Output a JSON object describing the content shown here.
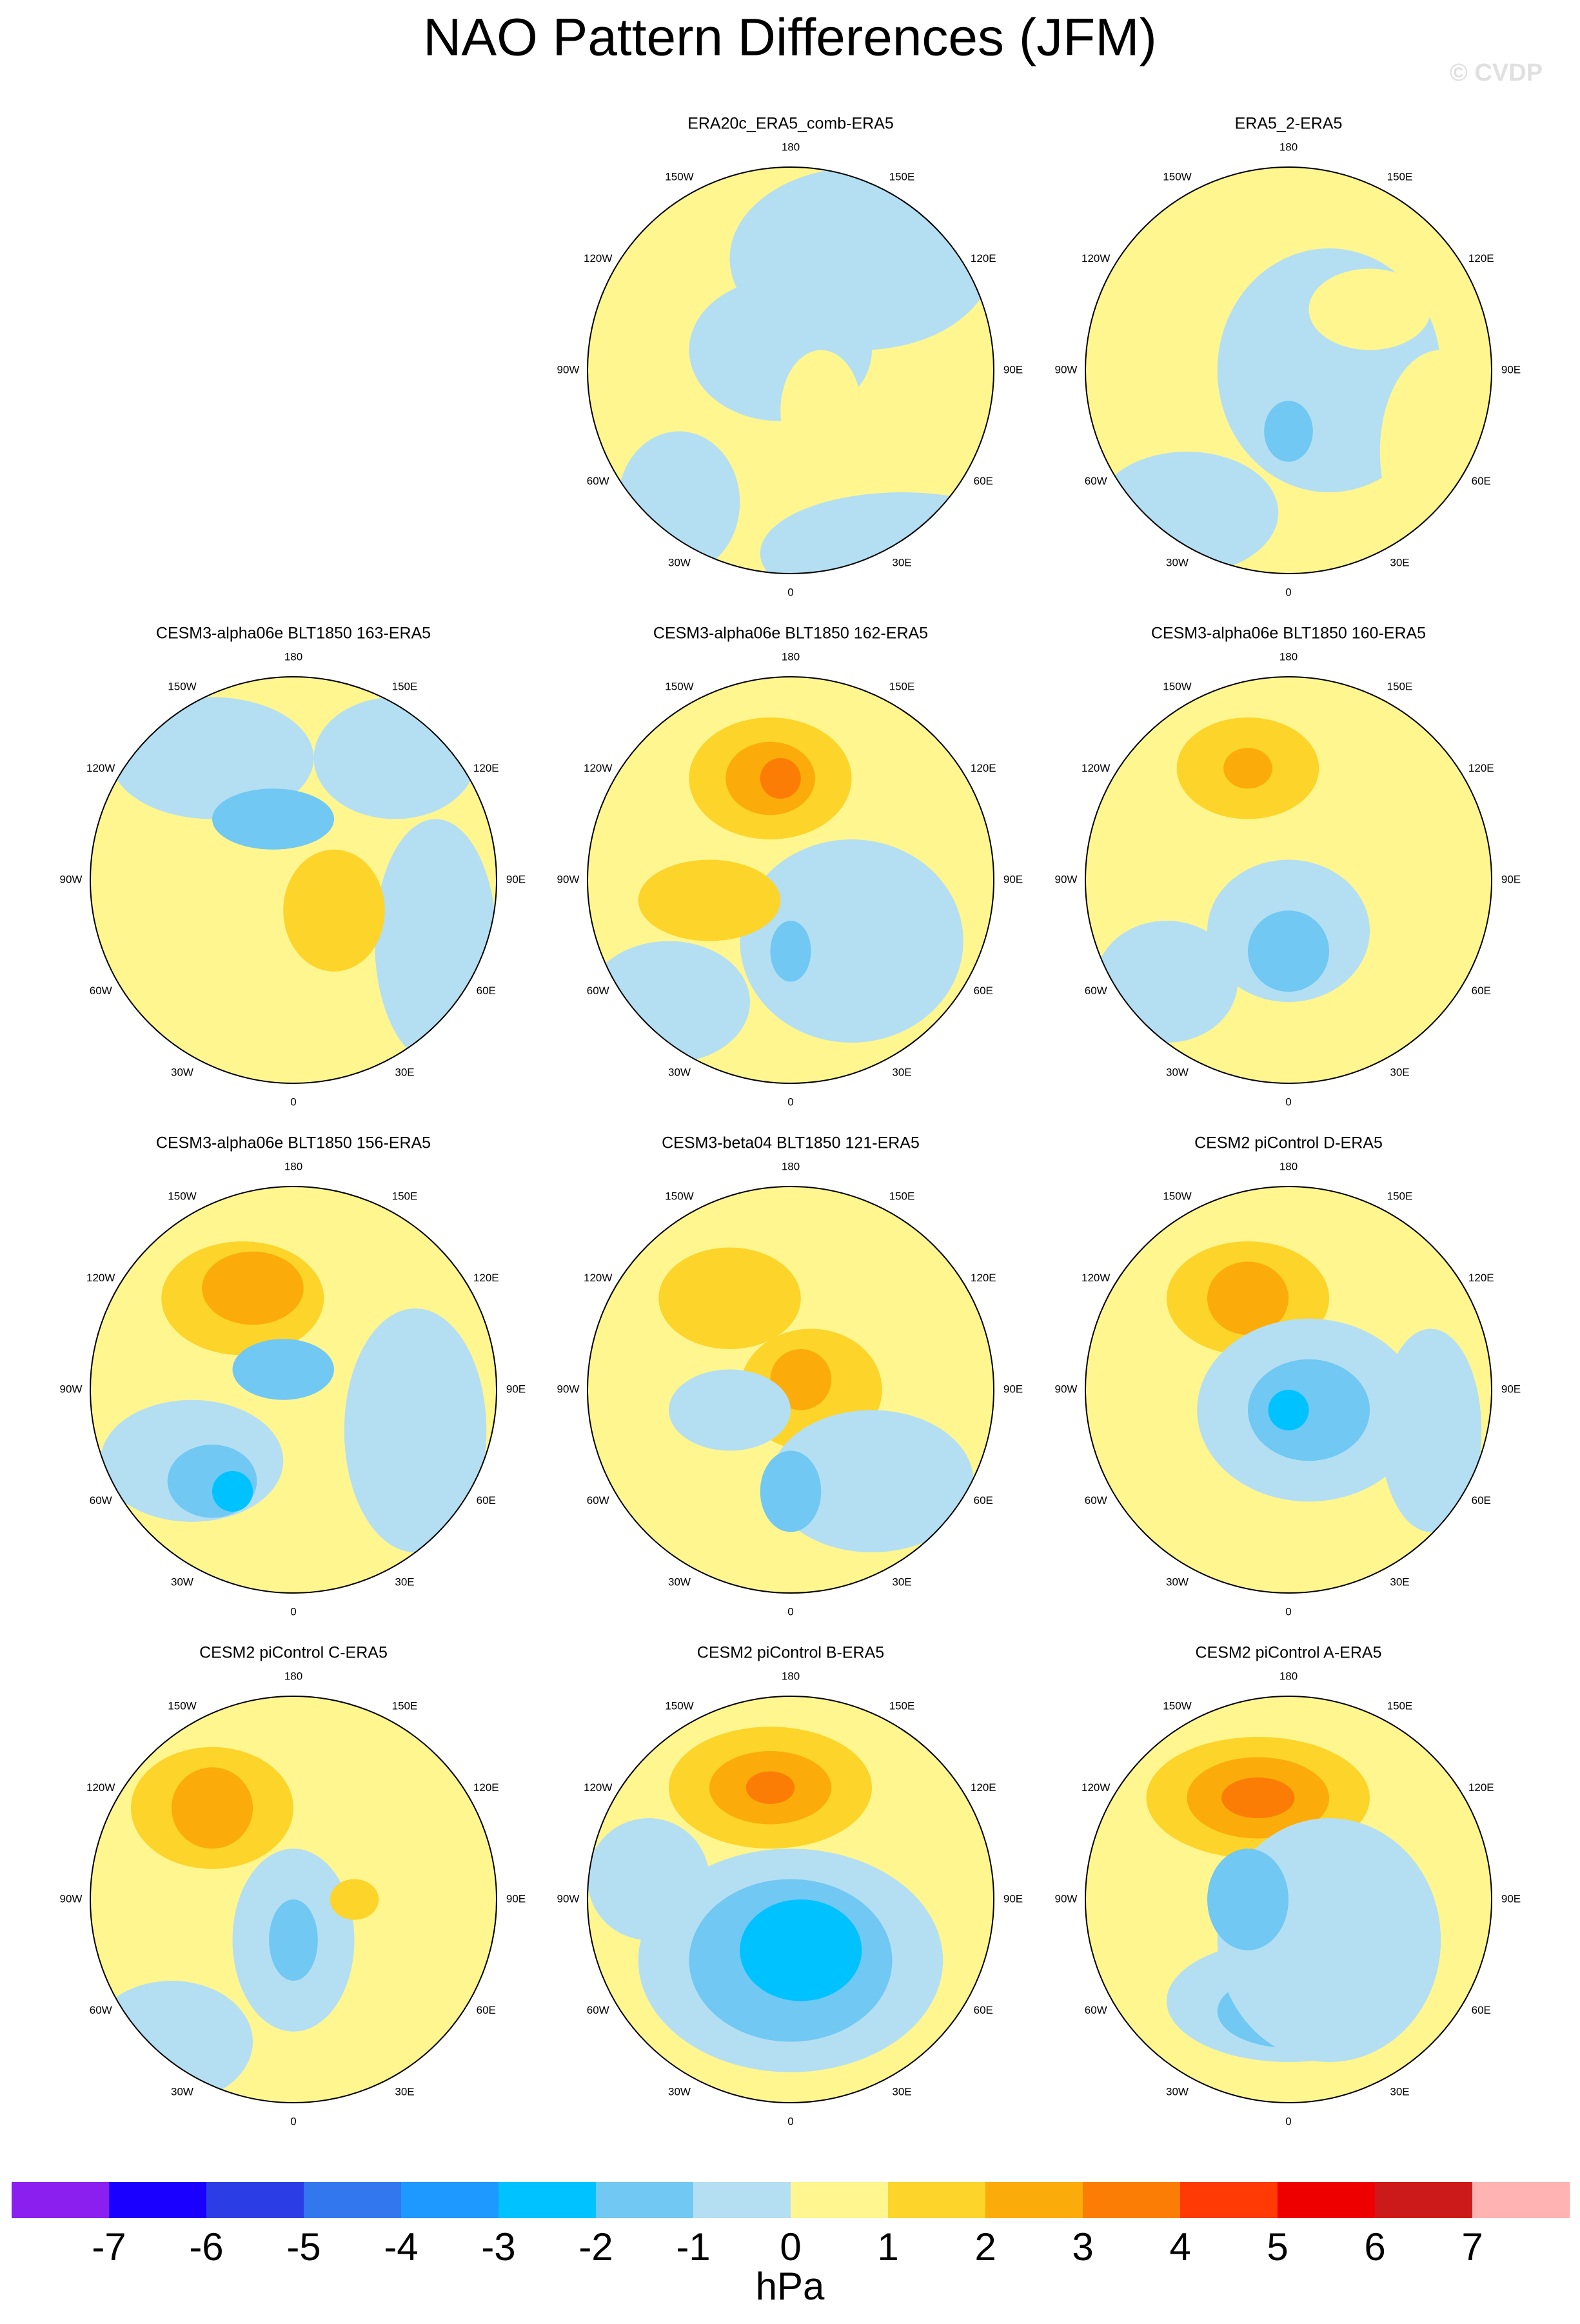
{
  "header": {
    "title": "NAO Pattern Differences (JFM)",
    "watermark": "© CVDP"
  },
  "panels": [
    {
      "title": "ERA20c_ERA5_comb-ERA5"
    },
    {
      "title": "ERA5_2-ERA5"
    },
    {
      "title": "CESM3-alpha06e BLT1850 163-ERA5"
    },
    {
      "title": "CESM3-alpha06e BLT1850 162-ERA5"
    },
    {
      "title": "CESM3-alpha06e BLT1850 160-ERA5"
    },
    {
      "title": "CESM3-alpha06e BLT1850 156-ERA5"
    },
    {
      "title": "CESM3-beta04 BLT1850 121-ERA5"
    },
    {
      "title": "CESM2 piControl D-ERA5"
    },
    {
      "title": "CESM2 piControl C-ERA5"
    },
    {
      "title": "CESM2 piControl B-ERA5"
    },
    {
      "title": "CESM2 piControl A-ERA5"
    }
  ],
  "longitude_labels": [
    "180",
    "150E",
    "120E",
    "90E",
    "60E",
    "30E",
    "0",
    "30W",
    "60W",
    "90W",
    "120W",
    "150W"
  ],
  "colorbar": {
    "levels": [
      -7,
      -6,
      -5,
      -4,
      -3,
      -2,
      -1,
      0,
      1,
      2,
      3,
      4,
      5,
      6,
      7
    ],
    "colors": [
      "#8a1ff0",
      "#1a00ff",
      "#2b3ee6",
      "#3377ee",
      "#1e99ff",
      "#00c2ff",
      "#70c8f3",
      "#b4dff2",
      "#fff690",
      "#fcd42a",
      "#fbab0a",
      "#fb7d06",
      "#ff3a05",
      "#ee0000",
      "#cc1a1a",
      "#ffb3b3"
    ],
    "label": "hPa"
  }
}
